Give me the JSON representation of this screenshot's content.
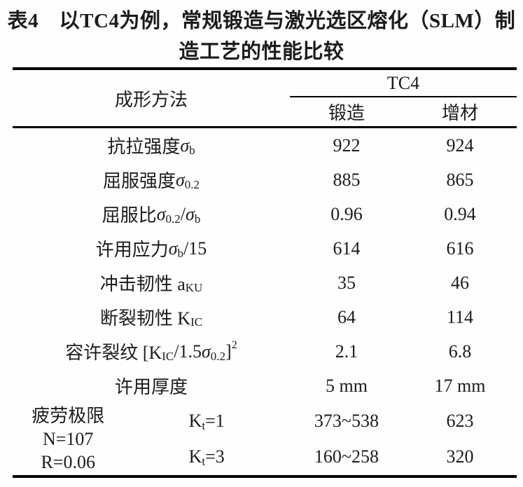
{
  "title": {
    "line1": "表4　以TC4为例，常规锻造与激光选区熔化（SLM）制",
    "line2": "造工艺的性能比较"
  },
  "table": {
    "header": {
      "method_label": "成形方法",
      "group_label": "TC4",
      "col1_label": "锻造",
      "col2_label": "增材"
    },
    "rows": [
      {
        "label": [
          [
            "n",
            "抗拉强度 "
          ],
          [
            "i",
            "σ"
          ],
          [
            "sub",
            "b"
          ]
        ],
        "forged": "922",
        "additive": "924"
      },
      {
        "label": [
          [
            "n",
            "屈服强度 "
          ],
          [
            "i",
            "σ"
          ],
          [
            "sub",
            "0.2"
          ]
        ],
        "forged": "885",
        "additive": "865"
      },
      {
        "label": [
          [
            "n",
            "屈服比 "
          ],
          [
            "i",
            "σ"
          ],
          [
            "sub",
            "0.2"
          ],
          [
            "n",
            "/"
          ],
          [
            "i",
            "σ"
          ],
          [
            "sub",
            "b"
          ]
        ],
        "forged": "0.96",
        "additive": "0.94"
      },
      {
        "label": [
          [
            "n",
            "许用应力 "
          ],
          [
            "i",
            "σ"
          ],
          [
            "sub",
            "b"
          ],
          [
            "n",
            "/15"
          ]
        ],
        "forged": "614",
        "additive": "616"
      },
      {
        "label": [
          [
            "n",
            "冲击韧性 a"
          ],
          [
            "sub",
            "KU"
          ]
        ],
        "forged": "35",
        "additive": "46"
      },
      {
        "label": [
          [
            "n",
            "断裂韧性 K"
          ],
          [
            "sub",
            "IC"
          ]
        ],
        "forged": "64",
        "additive": "114"
      },
      {
        "label": [
          [
            "n",
            "容许裂纹 [K"
          ],
          [
            "sub",
            "IC"
          ],
          [
            "n",
            "/1.5"
          ],
          [
            "i",
            "σ"
          ],
          [
            "sub",
            "0.2"
          ],
          [
            "n",
            "]"
          ],
          [
            "sup",
            "2"
          ]
        ],
        "forged": "2.1",
        "additive": "6.8"
      },
      {
        "label": [
          [
            "n",
            "许用厚度"
          ]
        ],
        "forged": "5 mm",
        "additive": "17 mm"
      }
    ],
    "fatigue": {
      "label_lines": [
        "疲劳极限",
        "N=107",
        "R=0.06"
      ],
      "sub_rows": [
        {
          "k": [
            [
              "n",
              "K"
            ],
            [
              "sub",
              "t"
            ],
            [
              "n",
              "=1"
            ]
          ],
          "forged": "373~538",
          "additive": "623"
        },
        {
          "k": [
            [
              "n",
              "K"
            ],
            [
              "sub",
              "t"
            ],
            [
              "n",
              "=3"
            ]
          ],
          "forged": "160~258",
          "additive": "320"
        }
      ]
    }
  },
  "colors": {
    "text": "#1c1c1c",
    "rule": "#000000",
    "background": "#fefefe"
  }
}
